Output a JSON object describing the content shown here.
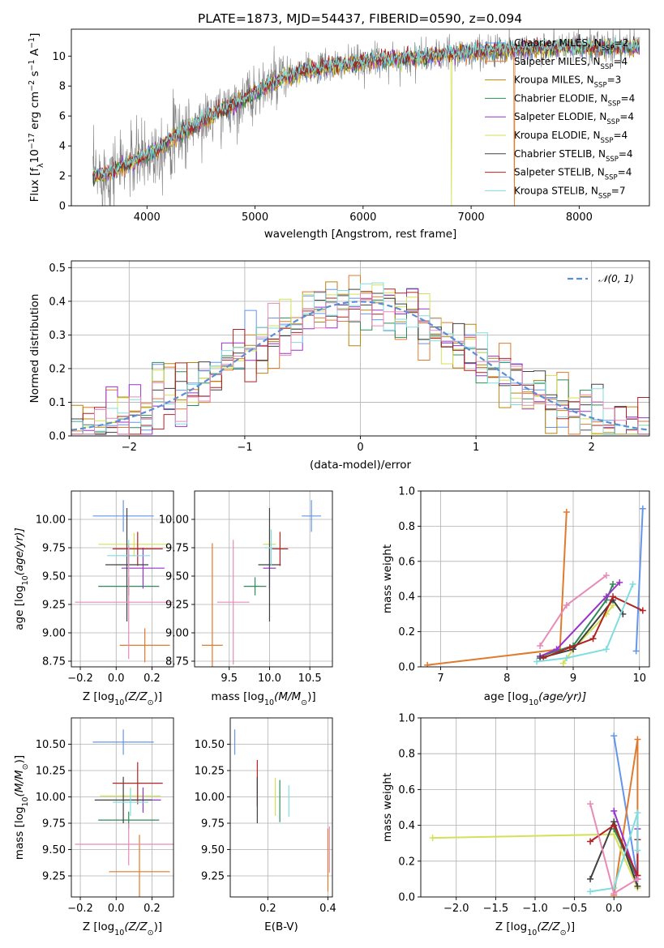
{
  "title": "PLATE=1873, MJD=54437, FIBERID=0590, z=0.094",
  "colors": {
    "Chabrier MILES": "#6495ed",
    "Salpeter MILES": "#e07a2c",
    "Kroupa MILES": "#b8860b",
    "Chabrier ELODIE": "#2e8b57",
    "Salpeter ELODIE": "#9932cc",
    "Kroupa ELODIE": "#d4e157",
    "Chabrier STELIB": "#404040",
    "Salpeter STELIB": "#b22222",
    "Kroupa STELIB": "#7fdde0",
    "pink": "#e88ab8",
    "spectrum": "#808080",
    "gaussian": "#5b8ed6"
  },
  "legend": [
    {
      "model": "Chabrier MILES",
      "text": "Chabrier MILES, N",
      "sub": "SSP",
      "rest": "=2"
    },
    {
      "model": "Salpeter MILES",
      "text": "Salpeter MILES, N",
      "sub": "SSP",
      "rest": "=4"
    },
    {
      "model": "Kroupa MILES",
      "text": "Kroupa MILES, N",
      "sub": "SSP",
      "rest": "=3"
    },
    {
      "model": "Chabrier ELODIE",
      "text": "Chabrier ELODIE, N",
      "sub": "SSP",
      "rest": "=4"
    },
    {
      "model": "Salpeter ELODIE",
      "text": "Salpeter ELODIE, N",
      "sub": "SSP",
      "rest": "=4"
    },
    {
      "model": "Kroupa ELODIE",
      "text": "Kroupa ELODIE, N",
      "sub": "SSP",
      "rest": "=4"
    },
    {
      "model": "Chabrier STELIB",
      "text": "Chabrier STELIB, N",
      "sub": "SSP",
      "rest": "=4"
    },
    {
      "model": "Salpeter STELIB",
      "text": "Salpeter STELIB, N",
      "sub": "SSP",
      "rest": "=4"
    },
    {
      "model": "Kroupa STELIB",
      "text": "Kroupa STELIB, N",
      "sub": "SSP",
      "rest": "=7"
    }
  ],
  "chart_data": [
    {
      "id": "spectrum",
      "type": "line",
      "title": "PLATE=1873, MJD=54437, FIBERID=0590, z=0.094",
      "xlabel": "wavelength [Angstrom, rest frame]",
      "ylabel_parts": [
        "Flux [f",
        "λ",
        "10",
        "−17",
        " erg cm",
        "−2",
        " s",
        "−1",
        " A",
        "−1",
        "]"
      ],
      "xlim": [
        3300,
        8650
      ],
      "ylim": [
        0,
        11.8
      ],
      "xticks": [
        4000,
        5000,
        6000,
        7000,
        8000
      ],
      "yticks": [
        0,
        2,
        4,
        6,
        8,
        10
      ],
      "continuum": {
        "x": [
          3500,
          3650,
          3800,
          3950,
          4100,
          4300,
          4500,
          4700,
          4900,
          5100,
          5300,
          5500,
          5700,
          5900,
          6100,
          6300,
          6500,
          6700,
          6900,
          7100,
          7300,
          7500,
          7700,
          7900,
          8100,
          8300
        ],
        "y": [
          2.0,
          2.2,
          2.7,
          3.2,
          3.8,
          4.8,
          5.6,
          6.4,
          7.1,
          8.0,
          8.6,
          9.1,
          9.3,
          9.5,
          9.7,
          9.8,
          9.9,
          10.0,
          10.2,
          10.3,
          10.4,
          10.5,
          10.5,
          10.6,
          10.6,
          10.6
        ]
      },
      "data_noise_amplitude": 1.2,
      "model_drops": [
        {
          "model": "Kroupa ELODIE",
          "x": 6820
        },
        {
          "model": "Salpeter MILES",
          "x": 7400
        }
      ]
    },
    {
      "id": "residuals",
      "type": "histogram",
      "xlabel": "(data-model)/error",
      "ylabel": "Normed distribution",
      "xlim": [
        -2.5,
        2.5
      ],
      "ylim": [
        0,
        0.52
      ],
      "xticks": [
        -2,
        -1,
        0,
        1,
        2
      ],
      "yticks": [
        0.0,
        0.1,
        0.2,
        0.3,
        0.4,
        0.5
      ],
      "bin_width": 0.1,
      "gaussian_label": "𝒩(0, 1)"
    },
    {
      "id": "age_vs_Z",
      "type": "errorbar",
      "xlabel_main": "Z [log",
      "xlabel_sub": "10",
      "xlabel_rest": "(Z/Z",
      "xlabel_end": ")]",
      "ylabel_main": "age  [log",
      "ylabel_sub": "10",
      "ylabel_rest": "(age/yr)]",
      "xlim": [
        -0.25,
        0.32
      ],
      "ylim": [
        8.7,
        10.25
      ],
      "xticks": [
        -0.2,
        0.0,
        0.2
      ],
      "yticks": [
        8.75,
        9.0,
        9.25,
        9.5,
        9.75,
        10.0
      ],
      "points": [
        {
          "model": "Chabrier MILES",
          "x": 0.04,
          "xerr": 0.17,
          "y": 10.03,
          "yerr": 0.14
        },
        {
          "model": "Salpeter MILES",
          "x": 0.16,
          "xerr": 0.14,
          "y": 8.89,
          "yerr": 0.15
        },
        {
          "model": "Kroupa ELODIE",
          "x": 0.1,
          "xerr": 0.2,
          "y": 9.78,
          "yerr": 0.1
        },
        {
          "model": "Chabrier ELODIE",
          "x": 0.07,
          "xerr": 0.17,
          "y": 9.41,
          "yerr": 0.08
        },
        {
          "model": "Salpeter ELODIE",
          "x": 0.15,
          "xerr": 0.12,
          "y": 9.57,
          "yerr": 0.18
        },
        {
          "model": "Chabrier STELIB",
          "x": 0.06,
          "xerr": 0.12,
          "y": 9.6,
          "yerr": 0.5
        },
        {
          "model": "Salpeter STELIB",
          "x": 0.12,
          "xerr": 0.14,
          "y": 9.74,
          "yerr": 0.15
        },
        {
          "model": "Kroupa STELIB",
          "x": 0.07,
          "xerr": 0.12,
          "y": 9.68,
          "yerr": 0.14
        },
        {
          "model": "pink",
          "x": 0.07,
          "xerr": 0.3,
          "y": 9.27,
          "yerr": 0.5
        }
      ]
    },
    {
      "id": "age_vs_mass",
      "type": "errorbar",
      "xlabel_main": "mass [log",
      "xlabel_sub": "10",
      "xlabel_rest": "(M/M",
      "xlabel_end": ")]",
      "xlim": [
        9.07,
        10.78
      ],
      "ylim": [
        8.7,
        10.25
      ],
      "xticks": [
        9.5,
        10.0,
        10.5
      ],
      "yticks": [
        8.75,
        9.0,
        9.25,
        9.5,
        9.75,
        10.0
      ],
      "points": [
        {
          "model": "Chabrier MILES",
          "x": 10.52,
          "xerr": 0.12,
          "y": 10.03,
          "yerr": 0.14
        },
        {
          "model": "Salpeter MILES",
          "x": 9.29,
          "xerr": 0.13,
          "y": 8.89,
          "yerr": 0.9
        },
        {
          "model": "Kroupa ELODIE",
          "x": 10.0,
          "xerr": 0.08,
          "y": 9.78,
          "yerr": 0.14
        },
        {
          "model": "Chabrier ELODIE",
          "x": 9.82,
          "xerr": 0.14,
          "y": 9.41,
          "yerr": 0.08
        },
        {
          "model": "Salpeter ELODIE",
          "x": 10.0,
          "xerr": 0.08,
          "y": 9.57,
          "yerr": 0.18
        },
        {
          "model": "Chabrier STELIB",
          "x": 10.0,
          "xerr": 0.14,
          "y": 9.6,
          "yerr": 0.5
        },
        {
          "model": "Salpeter STELIB",
          "x": 10.13,
          "xerr": 0.1,
          "y": 9.74,
          "yerr": 0.15
        },
        {
          "model": "Kroupa STELIB",
          "x": 10.02,
          "xerr": 0.08,
          "y": 9.75,
          "yerr": 0.16
        },
        {
          "model": "pink",
          "x": 9.55,
          "xerr": 0.2,
          "y": 9.27,
          "yerr": 0.55
        }
      ]
    },
    {
      "id": "mass_weight_vs_age",
      "type": "line",
      "xlabel_main": "age  [log",
      "xlabel_sub": "10",
      "xlabel_rest": "(age/yr)]",
      "ylabel": "mass weight",
      "xlim": [
        6.7,
        10.15
      ],
      "ylim": [
        0,
        1.0
      ],
      "xticks": [
        7,
        8,
        9,
        10
      ],
      "yticks": [
        0.0,
        0.2,
        0.4,
        0.6,
        0.8,
        1.0
      ],
      "series": [
        {
          "model": "Chabrier MILES",
          "x": [
            9.95,
            10.05
          ],
          "y": [
            0.09,
            0.9
          ]
        },
        {
          "model": "Salpeter MILES",
          "x": [
            6.8,
            8.8,
            8.9
          ],
          "y": [
            0.01,
            0.1,
            0.88
          ]
        },
        {
          "model": "Kroupa ELODIE",
          "x": [
            8.85,
            9.0,
            9.5,
            9.6
          ],
          "y": [
            0.02,
            0.1,
            0.3,
            0.35
          ]
        },
        {
          "model": "Chabrier ELODIE",
          "x": [
            8.5,
            9.0,
            9.5,
            9.6
          ],
          "y": [
            0.06,
            0.12,
            0.38,
            0.47
          ]
        },
        {
          "model": "Salpeter ELODIE",
          "x": [
            8.5,
            8.75,
            9.5,
            9.7
          ],
          "y": [
            0.06,
            0.1,
            0.4,
            0.48
          ]
        },
        {
          "model": "Chabrier STELIB",
          "x": [
            8.5,
            9.0,
            9.6,
            9.75
          ],
          "y": [
            0.05,
            0.1,
            0.38,
            0.3
          ]
        },
        {
          "model": "Salpeter STELIB",
          "x": [
            8.55,
            8.95,
            9.3,
            9.6,
            10.05
          ],
          "y": [
            0.05,
            0.11,
            0.16,
            0.4,
            0.32
          ]
        },
        {
          "model": "Kroupa STELIB",
          "x": [
            8.45,
            8.9,
            9.5,
            9.9
          ],
          "y": [
            0.03,
            0.05,
            0.1,
            0.47
          ]
        },
        {
          "model": "pink",
          "x": [
            8.5,
            8.9,
            9.5
          ],
          "y": [
            0.12,
            0.35,
            0.52
          ]
        }
      ]
    },
    {
      "id": "mass_vs_Z",
      "type": "errorbar",
      "xlabel_main": "Z [log",
      "xlabel_sub": "10",
      "xlabel_rest": "(Z/Z",
      "xlabel_end": ")]",
      "ylabel_main": "mass [log",
      "ylabel_sub": "10",
      "ylabel_rest": "(M/M",
      "ylabel_end": ")]",
      "xlim": [
        -0.25,
        0.32
      ],
      "ylim": [
        9.05,
        10.75
      ],
      "xticks": [
        -0.2,
        0.0,
        0.2
      ],
      "yticks": [
        9.25,
        9.5,
        9.75,
        10.0,
        10.25,
        10.5
      ],
      "points": [
        {
          "model": "Chabrier MILES",
          "x": 0.04,
          "xerr": 0.17,
          "y": 10.52,
          "yerr": 0.12
        },
        {
          "model": "Salpeter MILES",
          "x": 0.13,
          "xerr": 0.17,
          "y": 9.29,
          "yerr": 0.35
        },
        {
          "model": "Kroupa ELODIE",
          "x": 0.08,
          "xerr": 0.17,
          "y": 10.01,
          "yerr": 0.08
        },
        {
          "model": "Chabrier ELODIE",
          "x": 0.07,
          "xerr": 0.17,
          "y": 9.78,
          "yerr": 0.08
        },
        {
          "model": "Salpeter ELODIE",
          "x": 0.15,
          "xerr": 0.1,
          "y": 9.97,
          "yerr": 0.12
        },
        {
          "model": "Chabrier STELIB",
          "x": 0.04,
          "xerr": 0.16,
          "y": 9.97,
          "yerr": 0.22
        },
        {
          "model": "Salpeter STELIB",
          "x": 0.12,
          "xerr": 0.14,
          "y": 10.13,
          "yerr": 0.2
        },
        {
          "model": "Kroupa STELIB",
          "x": 0.08,
          "xerr": 0.1,
          "y": 9.95,
          "yerr": 0.13
        },
        {
          "model": "pink",
          "x": 0.07,
          "xerr": 0.3,
          "y": 9.55,
          "yerr": 0.2
        }
      ]
    },
    {
      "id": "mass_vs_EBV",
      "type": "errorbar",
      "xlabel": "E(B-V)",
      "xlim": [
        0.075,
        0.415
      ],
      "ylim": [
        9.05,
        10.75
      ],
      "xticks": [
        0.2,
        0.4
      ],
      "yticks": [
        9.25,
        9.5,
        9.75,
        10.0,
        10.25,
        10.5
      ],
      "points": [
        {
          "model": "Chabrier MILES",
          "x": 0.09,
          "y": 10.52,
          "yerr": 0.12
        },
        {
          "model": "Salpeter MILES",
          "x": 0.4,
          "y": 9.4,
          "yerr": 0.3
        },
        {
          "model": "Kroupa ELODIE",
          "x": 0.225,
          "y": 10.0,
          "yerr": 0.18
        },
        {
          "model": "Chabrier ELODIE",
          "x": 0.24,
          "y": 9.96,
          "yerr": 0.2
        },
        {
          "model": "Salpeter STELIB",
          "x": 0.165,
          "y": 10.13,
          "yerr": 0.22
        },
        {
          "model": "Chabrier STELIB",
          "x": 0.165,
          "y": 9.97,
          "yerr": 0.22
        },
        {
          "model": "Kroupa STELIB",
          "x": 0.27,
          "y": 9.96,
          "yerr": 0.15
        },
        {
          "model": "pink",
          "x": 0.405,
          "y": 9.5,
          "yerr": 0.22
        }
      ]
    },
    {
      "id": "mass_weight_vs_Z",
      "type": "line",
      "xlabel_main": "Z [log",
      "xlabel_sub": "10",
      "xlabel_rest": "(Z/Z",
      "xlabel_end": ")]",
      "ylabel": "mass weight",
      "xlim": [
        -2.45,
        0.45
      ],
      "ylim": [
        0,
        1.0
      ],
      "xticks": [
        -2.0,
        -1.5,
        -1.0,
        -0.5,
        0.0
      ],
      "yticks": [
        0.0,
        0.2,
        0.4,
        0.6,
        0.8,
        1.0
      ],
      "series": [
        {
          "model": "Chabrier MILES",
          "x": [
            0.0,
            0.3
          ],
          "y": [
            0.9,
            0.1
          ]
        },
        {
          "model": "Salpeter MILES",
          "x": [
            0.0,
            0.3,
            0.3
          ],
          "y": [
            0.01,
            0.88,
            0.12
          ]
        },
        {
          "model": "Kroupa ELODIE",
          "x": [
            -2.3,
            0.0,
            0.3
          ],
          "y": [
            0.33,
            0.35,
            0.05
          ]
        },
        {
          "model": "Chabrier ELODIE",
          "x": [
            0.0,
            0.3
          ],
          "y": [
            0.38,
            0.1
          ]
        },
        {
          "model": "Salpeter ELODIE",
          "x": [
            0.0,
            0.3,
            0.3
          ],
          "y": [
            0.48,
            0.1,
            0.38
          ]
        },
        {
          "model": "Chabrier STELIB",
          "x": [
            -0.3,
            0.0,
            0.3
          ],
          "y": [
            0.1,
            0.42,
            0.06
          ]
        },
        {
          "model": "Salpeter STELIB",
          "x": [
            -0.3,
            0.0,
            0.3,
            0.3
          ],
          "y": [
            0.31,
            0.4,
            0.12,
            0.32
          ]
        },
        {
          "model": "Kroupa STELIB",
          "x": [
            -0.3,
            0.0,
            0.3,
            0.3
          ],
          "y": [
            0.03,
            0.05,
            0.47,
            0.26
          ]
        },
        {
          "model": "pink",
          "x": [
            -0.3,
            0.0,
            0.3
          ],
          "y": [
            0.52,
            0.02,
            0.1
          ]
        }
      ]
    }
  ]
}
